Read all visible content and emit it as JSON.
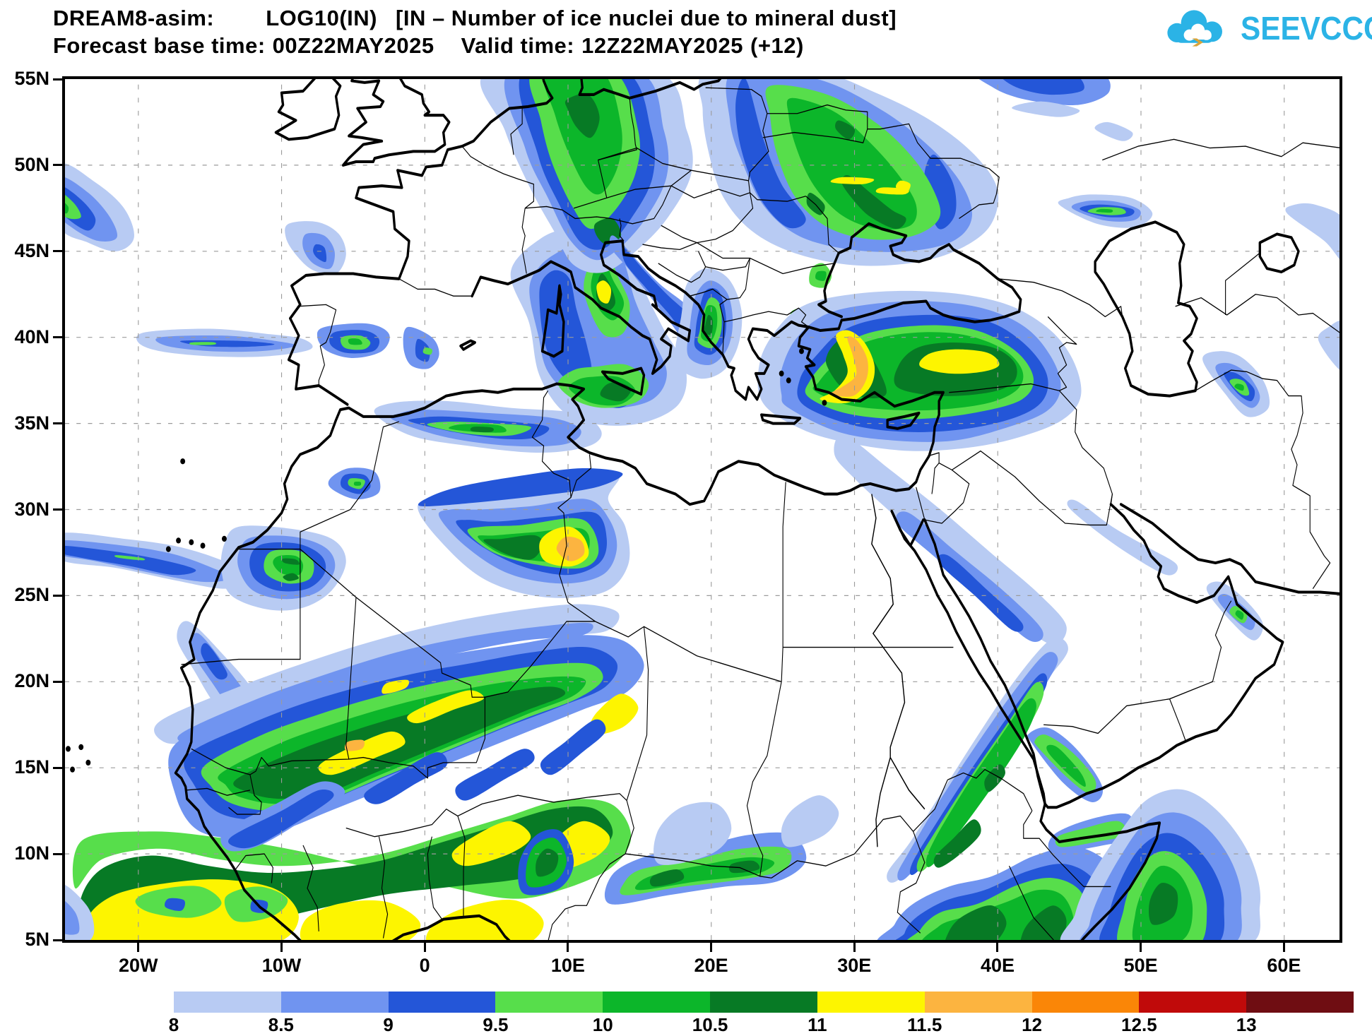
{
  "header": {
    "model": "DREAM8-asim:",
    "variable": "LOG10(IN)",
    "description": "[IN – Number of ice nuclei due to mineral dust]",
    "forecast_label": "Forecast base time:",
    "base_time": "00Z22MAY2025",
    "valid_label": "Valid time:",
    "valid_time": "12Z22MAY2025",
    "offset": "(+12)"
  },
  "logo": {
    "text": "SEEVCCC",
    "brand_color": "#2bb3e6",
    "arrow_color": "#d9a43a"
  },
  "axes": {
    "lat_labels": [
      "55N",
      "50N",
      "45N",
      "40N",
      "35N",
      "30N",
      "25N",
      "20N",
      "15N",
      "10N",
      "5N"
    ],
    "lat_values": [
      55,
      50,
      45,
      40,
      35,
      30,
      25,
      20,
      15,
      10,
      5
    ],
    "lon_labels": [
      "20W",
      "10W",
      "0",
      "10E",
      "20E",
      "30E",
      "40E",
      "50E",
      "60E"
    ],
    "lon_values": [
      -20,
      -10,
      0,
      10,
      20,
      30,
      40,
      50,
      60
    ]
  },
  "legend": {
    "labels": [
      "8",
      "8.5",
      "9",
      "9.5",
      "10",
      "10.5",
      "11",
      "11.5",
      "12",
      "12.5",
      "13"
    ],
    "colors": [
      "#b8cbf3",
      "#7094f0",
      "#2456d8",
      "#57de4b",
      "#0cb62a",
      "#077a25",
      "#fdf500",
      "#fcb440",
      "#fa8607",
      "#c00a0a",
      "#6f0d12"
    ]
  },
  "chart_data": {
    "type": "heatmap",
    "title": "LOG10(IN) [IN – Number of ice nuclei due to mineral dust]",
    "model_run": "DREAM8-asim 00Z22MAY2025, valid 12Z22MAY2025 (+12)",
    "xlabel_ticks": [
      "20W",
      "10W",
      "0",
      "10E",
      "20E",
      "30E",
      "40E",
      "50E",
      "60E"
    ],
    "ylabel_ticks": [
      "55N",
      "50N",
      "45N",
      "40N",
      "35N",
      "30N",
      "25N",
      "20N",
      "15N",
      "10N",
      "5N"
    ],
    "scale_boundaries": [
      8,
      8.5,
      9,
      9.5,
      10,
      10.5,
      11,
      11.5,
      12,
      12.5,
      13
    ],
    "scale_colors": [
      "#b8cbf3",
      "#7094f0",
      "#2456d8",
      "#57de4b",
      "#0cb62a",
      "#077a25",
      "#fdf500",
      "#fcb440",
      "#fa8607",
      "#c00a0a",
      "#6f0d12"
    ],
    "legend_position": "bottom",
    "grid": "dashed graticule every 5 deg lat / 10 deg lon"
  }
}
